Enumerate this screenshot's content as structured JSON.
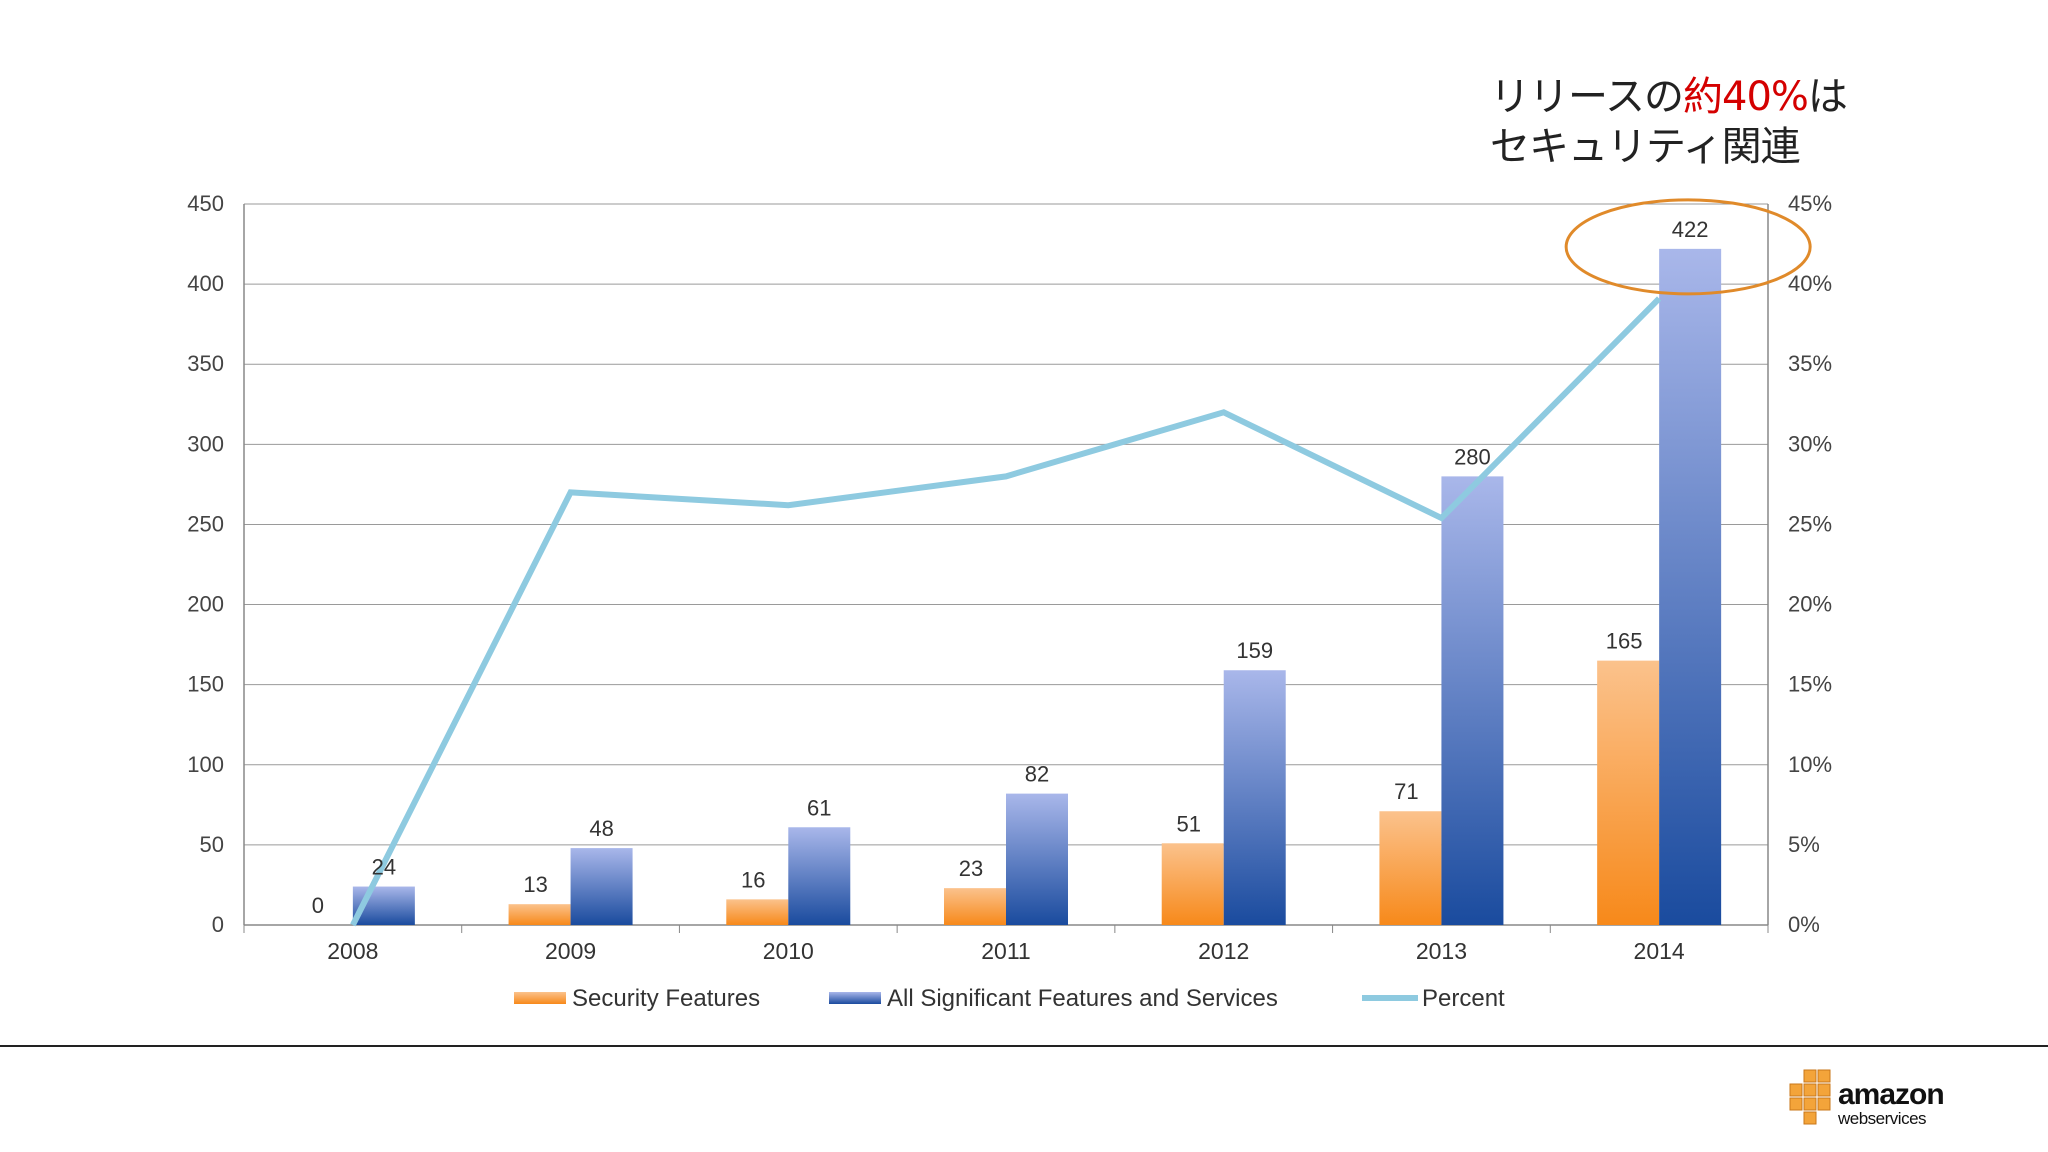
{
  "callout": {
    "line1_prefix": "リリースの",
    "line1_highlight": "約40%",
    "line1_suffix": "は",
    "line2": "セキュリティ関連"
  },
  "logo": {
    "brand": "amazon",
    "sub": "webservices"
  },
  "colors": {
    "security": "#f7931e",
    "all_features": "#2b54a8",
    "percent_line": "#8ecae0",
    "highlight_circle": "#e08a2a",
    "highlight_text": "#d40000"
  },
  "chart_data": {
    "type": "bar",
    "title": "",
    "categories": [
      "2008",
      "2009",
      "2010",
      "2011",
      "2012",
      "2013",
      "2014"
    ],
    "series": [
      {
        "name": "Security Features",
        "type": "bar",
        "values": [
          0,
          13,
          16,
          23,
          51,
          71,
          165
        ]
      },
      {
        "name": "All Significant Features and Services",
        "type": "bar",
        "values": [
          24,
          48,
          61,
          82,
          159,
          280,
          422
        ]
      },
      {
        "name": "Percent",
        "type": "line",
        "axis": "right",
        "values": [
          0,
          27,
          26.2,
          28,
          32,
          25.4,
          39.1
        ]
      }
    ],
    "ylim": [
      0,
      450
    ],
    "yticks": [
      "0",
      "50",
      "100",
      "150",
      "200",
      "250",
      "300",
      "350",
      "400",
      "450"
    ],
    "y2lim": [
      0,
      45
    ],
    "y2ticks": [
      "0%",
      "5%",
      "10%",
      "15%",
      "20%",
      "25%",
      "30%",
      "35%",
      "40%",
      "45%"
    ],
    "grid": true,
    "legend": "bottom",
    "highlight": {
      "category": "2014",
      "series": "All Significant Features and Services"
    }
  }
}
